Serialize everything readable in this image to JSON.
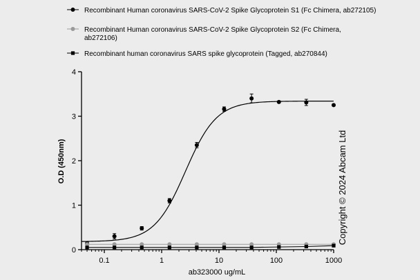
{
  "chart_data": {
    "type": "scatter",
    "xlabel": "ab323000 ug/mL",
    "ylabel": "O.D (450nm)",
    "x_scale": "log",
    "xlim": [
      0.04,
      1000
    ],
    "ylim": [
      0,
      4
    ],
    "x_ticks": [
      0.1,
      1,
      10,
      100,
      1000
    ],
    "x_tick_labels": [
      "0.1",
      "1",
      "10",
      "100",
      "1000"
    ],
    "y_ticks": [
      0,
      1,
      2,
      3,
      4
    ],
    "y_tick_labels": [
      "0",
      "1",
      "2",
      "3",
      "4"
    ],
    "legend_position": "top",
    "copyright": "Copyright © 2024 Abcam Ltd",
    "series": [
      {
        "name": "Recombinant Human coronavirus SARS-CoV-2 Spike Glycoprotein S1 (Fc Chimera, ab272105)",
        "marker": "circle",
        "color": "#000000",
        "x": [
          0.05,
          0.15,
          0.45,
          1.37,
          4.1,
          12.3,
          37,
          111,
          333,
          1000
        ],
        "y": [
          0.14,
          0.3,
          0.48,
          1.1,
          2.35,
          3.16,
          3.4,
          3.32,
          3.31,
          3.25
        ],
        "errors": [
          0.04,
          0.06,
          0.04,
          0.05,
          0.06,
          0.05,
          0.1,
          0.02,
          0.07,
          0.02
        ],
        "fit_curve": {
          "bottom": 0.18,
          "top": 3.34,
          "ec50": 2.6,
          "hill": 1.6
        }
      },
      {
        "name": "Recombinant Human coronavirus SARS-CoV-2 Spike Glycoprotein S2 (Fc Chimera, ab272106)",
        "marker": "circle",
        "color": "#9a9a9a",
        "x": [
          0.05,
          0.15,
          0.45,
          1.37,
          4.1,
          12.3,
          37,
          111,
          333,
          1000
        ],
        "y": [
          0.12,
          0.12,
          0.12,
          0.12,
          0.12,
          0.12,
          0.12,
          0.12,
          0.12,
          0.12
        ]
      },
      {
        "name": "Recombinant human coronavirus SARS spike glycoprotein (Tagged, ab270844)",
        "marker": "square",
        "color": "#000000",
        "x": [
          0.05,
          0.15,
          0.45,
          1.37,
          4.1,
          12.3,
          37,
          111,
          333,
          1000
        ],
        "y": [
          0.05,
          0.05,
          0.05,
          0.05,
          0.05,
          0.05,
          0.05,
          0.06,
          0.07,
          0.09
        ]
      }
    ]
  }
}
